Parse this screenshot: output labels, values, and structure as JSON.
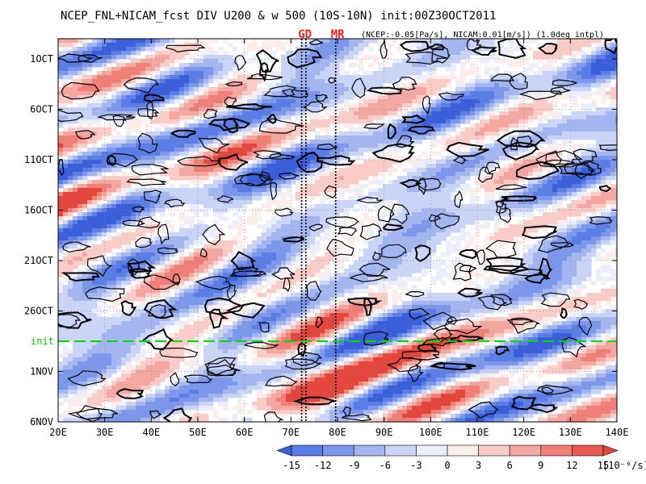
{
  "chart_data": {
    "type": "heatmap",
    "title": "NCEP_FNL+NICAM_fcst DIV U200 & w 500 (10S-10N) init:00Z30OCT2011",
    "subtitle": "(NCEP:-0.05[Pa/s], NICAM:0.01[m/s]) (1.0deg intpl)",
    "x_ticks": [
      "20E",
      "30E",
      "40E",
      "50E",
      "60E",
      "70E",
      "80E",
      "90E",
      "100E",
      "110E",
      "120E",
      "130E",
      "140E"
    ],
    "x_tick_values": [
      20,
      30,
      40,
      50,
      60,
      70,
      80,
      90,
      100,
      110,
      120,
      130,
      140
    ],
    "xlim": [
      20,
      140
    ],
    "y_ticks": [
      "1OCT",
      "6OCT",
      "11OCT",
      "16OCT",
      "21OCT",
      "26OCT",
      "1NOV",
      "6NOV"
    ],
    "y_tick_values": [
      1,
      6,
      11,
      16,
      21,
      26,
      32,
      37
    ],
    "ylim": [
      -1,
      37
    ],
    "init_label": "init",
    "init_day": 29,
    "markers": [
      {
        "label": "GD",
        "lon": 73,
        "lines": [
          72.3,
          73.2
        ]
      },
      {
        "label": "MR",
        "lon": 80,
        "lines": [
          79.6
        ]
      }
    ],
    "colorbar": {
      "ticks": [
        "-15",
        "-12",
        "-9",
        "-6",
        "-3",
        "0",
        "3",
        "6",
        "9",
        "12",
        "15"
      ],
      "unit": "[10⁻⁶/s]",
      "colors": [
        "#3a5fd9",
        "#5a7ee6",
        "#7d98ea",
        "#a3b6f0",
        "#c9d4f6",
        "#ebeefb",
        "#fcecea",
        "#f9ccc7",
        "#f4a7a0",
        "#ee8077",
        "#e85a50",
        "#e2463c"
      ]
    }
  }
}
